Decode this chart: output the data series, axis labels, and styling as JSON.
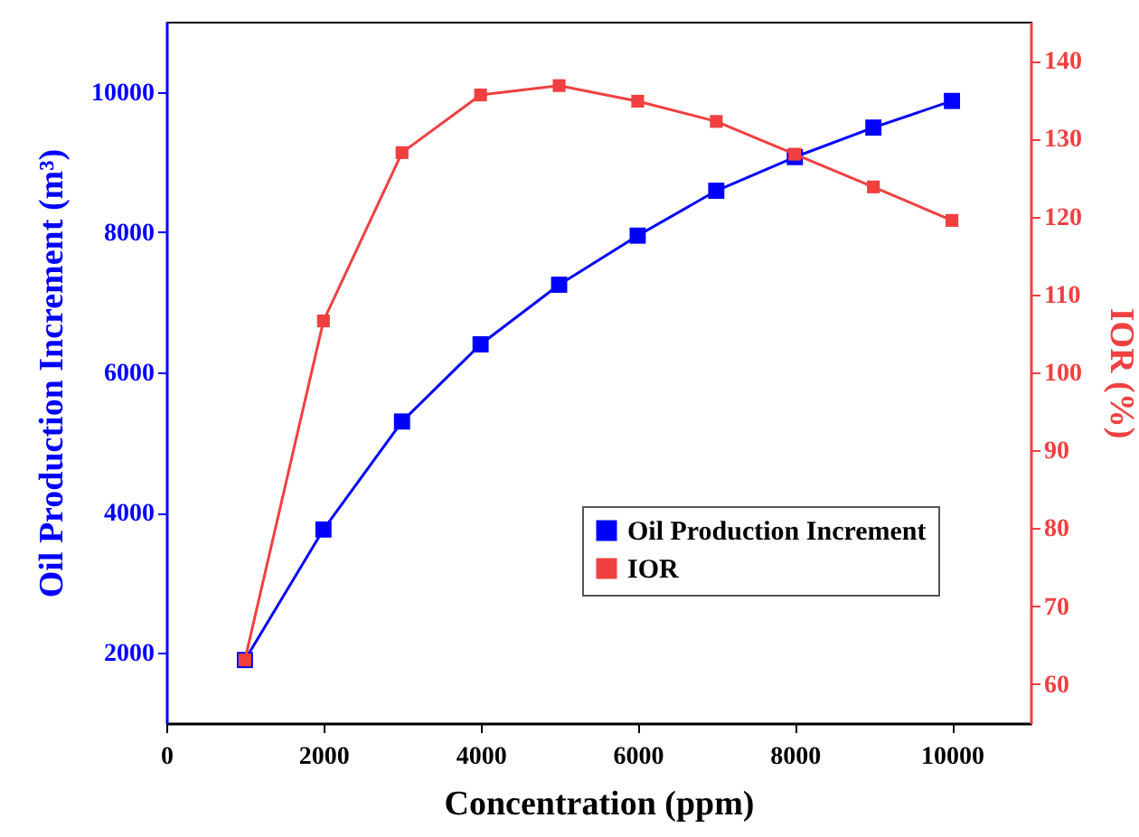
{
  "chart_data": {
    "type": "line",
    "xlabel": "Concentration (ppm)",
    "ylabel": "Oil Production Increment (m³)",
    "y2label": "IOR (%)",
    "x": [
      1000,
      2000,
      3000,
      4000,
      5000,
      6000,
      7000,
      8000,
      9000,
      10000
    ],
    "series": [
      {
        "name": "Oil Production Increment",
        "color": "#0000ff",
        "values": [
          1900,
          3760,
          5300,
          6400,
          7250,
          7950,
          8590,
          9070,
          9490,
          9870
        ]
      },
      {
        "name": "IOR",
        "color": "#f04040",
        "axis": "y2",
        "values": [
          63.1,
          106.6,
          128.2,
          135.6,
          136.8,
          134.8,
          132.2,
          128.0,
          123.8,
          119.5
        ]
      }
    ],
    "xlim": [
      0,
      11000
    ],
    "xticks": [
      0,
      2000,
      4000,
      6000,
      8000,
      10000
    ],
    "ylim": [
      1000,
      11000
    ],
    "yticks": [
      2000,
      4000,
      6000,
      8000,
      10000
    ],
    "y2lim": [
      55,
      145
    ],
    "y2ticks": [
      60,
      70,
      80,
      90,
      100,
      110,
      120,
      130,
      140
    ],
    "grid": false,
    "legend": "right",
    "marker": "square",
    "line_style": "solid"
  }
}
